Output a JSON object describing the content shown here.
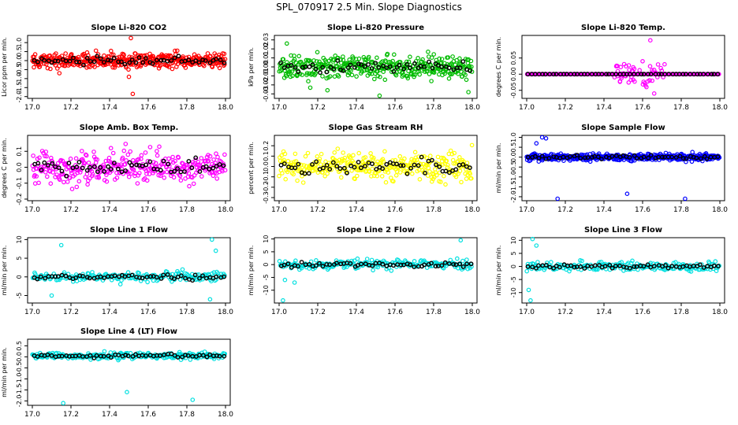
{
  "title": "SPL_070917  2.5 Min. Slope Diagnostics",
  "chart_data": [
    {
      "type": "scatter",
      "title": "Slope Li-820 CO2",
      "ylabel": "Licor ppm per min.",
      "xlim": [
        17.0,
        18.0
      ],
      "ylim": [
        -2.1,
        1.4
      ],
      "xticks": [
        "17.0",
        "17.2",
        "17.4",
        "17.6",
        "17.8",
        "18.0"
      ],
      "yticks": [
        "-2.0",
        "-1.5",
        "-1.0",
        "-0.5",
        "0.0",
        "0.5",
        "1.0"
      ],
      "color": "#ff0000",
      "center": 0.0,
      "spread": 0.35,
      "n": 420,
      "outliers": [
        [
          17.52,
          -1.85
        ],
        [
          17.51,
          1.25
        ],
        [
          17.5,
          -0.9
        ],
        [
          17.14,
          -0.7
        ]
      ]
    },
    {
      "type": "scatter",
      "title": "Slope Li-820 Pressure",
      "ylabel": "kPa per min.",
      "xlim": [
        17.0,
        18.0
      ],
      "ylim": [
        -0.035,
        0.035
      ],
      "xticks": [
        "17.0",
        "17.2",
        "17.4",
        "17.6",
        "17.8",
        "18.0"
      ],
      "yticks": [
        "-0.03",
        "-0.02",
        "-0.01",
        "0.00",
        "0.01",
        "0.02",
        "0.03"
      ],
      "color": "#00bb00",
      "center": 0.0,
      "spread": 0.011,
      "n": 380,
      "outliers": [
        [
          17.04,
          0.026
        ],
        [
          17.52,
          -0.032
        ],
        [
          17.98,
          -0.028
        ],
        [
          17.25,
          -0.026
        ]
      ]
    },
    {
      "type": "scatter",
      "title": "Slope Li-820 Temp.",
      "ylabel": "degrees C per min.",
      "xlim": [
        17.0,
        18.0
      ],
      "ylim": [
        -0.075,
        0.12
      ],
      "xticks": [
        "17.0",
        "17.2",
        "17.4",
        "17.6",
        "17.8",
        "18.0"
      ],
      "yticks": [
        "-0.05",
        "0.00",
        "0.05"
      ],
      "color": "#ff00ff",
      "center": 0.0,
      "spread": 0.0,
      "n": 200,
      "outliers": [
        [
          17.64,
          0.105
        ],
        [
          17.66,
          -0.06
        ],
        [
          17.6,
          0.04
        ],
        [
          17.68,
          0.03
        ],
        [
          17.62,
          -0.04
        ]
      ]
    },
    {
      "type": "scatter",
      "title": "Slope Amb. Box Temp.",
      "ylabel": "degrees C per min.",
      "xlim": [
        17.0,
        18.0
      ],
      "ylim": [
        -0.21,
        0.2
      ],
      "xticks": [
        "17.0",
        "17.2",
        "17.4",
        "17.6",
        "17.8",
        "18.0"
      ],
      "yticks": [
        "-0.2",
        "-0.1",
        "0.0",
        "0.1"
      ],
      "color": "#ff00ff",
      "center": 0.0,
      "spread": 0.08,
      "n": 340,
      "outliers": []
    },
    {
      "type": "scatter",
      "title": "Slope Gas Stream RH",
      "ylabel": "percent per min.",
      "xlim": [
        17.0,
        18.0
      ],
      "ylim": [
        -0.33,
        0.3
      ],
      "xticks": [
        "17.0",
        "17.2",
        "17.4",
        "17.6",
        "17.8",
        "18.0"
      ],
      "yticks": [
        "-0.3",
        "-0.2",
        "-0.1",
        "0.0",
        "0.1",
        "0.2"
      ],
      "color": "#ffff00",
      "center": 0.0,
      "spread": 0.12,
      "n": 330,
      "outliers": []
    },
    {
      "type": "scatter",
      "title": "Slope Sample Flow",
      "ylabel": "ml/min per min.",
      "xlim": [
        17.0,
        18.0
      ],
      "ylim": [
        -2.2,
        1.1
      ],
      "xticks": [
        "17.0",
        "17.2",
        "17.4",
        "17.6",
        "17.8",
        "18.0"
      ],
      "yticks": [
        "-2.0",
        "-1.5",
        "-1.0",
        "-0.5",
        "0.0",
        "0.5",
        "1.0"
      ],
      "color": "#0000ff",
      "center": 0.0,
      "spread": 0.15,
      "n": 420,
      "outliers": [
        [
          17.16,
          -2.1
        ],
        [
          17.82,
          -2.1
        ],
        [
          17.52,
          -1.85
        ],
        [
          17.08,
          1.0
        ],
        [
          17.1,
          0.95
        ],
        [
          17.05,
          0.7
        ]
      ]
    },
    {
      "type": "scatter",
      "title": "Slope Line 1 Flow",
      "ylabel": "ml/min per min.",
      "xlim": [
        17.0,
        18.0
      ],
      "ylim": [
        -7,
        10.5
      ],
      "xticks": [
        "17.0",
        "17.2",
        "17.4",
        "17.6",
        "17.8",
        "18.0"
      ],
      "yticks": [
        "-5",
        "0",
        "5",
        "10"
      ],
      "color": "#00e0e0",
      "center": 0.0,
      "spread": 1.0,
      "n": 200,
      "outliers": [
        [
          17.93,
          10
        ],
        [
          17.15,
          8.5
        ],
        [
          17.92,
          -6
        ],
        [
          17.1,
          -5
        ],
        [
          17.95,
          7
        ]
      ]
    },
    {
      "type": "scatter",
      "title": "Slope Line 2 Flow",
      "ylabel": "ml/min per min.",
      "xlim": [
        17.0,
        18.0
      ],
      "ylim": [
        -15,
        10.5
      ],
      "xticks": [
        "17.0",
        "17.2",
        "17.4",
        "17.6",
        "17.8",
        "18.0"
      ],
      "yticks": [
        "-10",
        "-5",
        "0",
        "5",
        "10"
      ],
      "color": "#00e0e0",
      "center": 0.0,
      "spread": 1.5,
      "n": 200,
      "outliers": [
        [
          17.02,
          -14
        ],
        [
          17.94,
          9.5
        ],
        [
          17.03,
          -6
        ],
        [
          17.08,
          -7
        ]
      ]
    },
    {
      "type": "scatter",
      "title": "Slope Line 3 Flow",
      "ylabel": "ml/min per min.",
      "xlim": [
        17.0,
        18.0
      ],
      "ylim": [
        -14,
        11
      ],
      "xticks": [
        "17.0",
        "17.2",
        "17.4",
        "17.6",
        "17.8",
        "18.0"
      ],
      "yticks": [
        "-10",
        "-5",
        "0",
        "5",
        "10"
      ],
      "color": "#00e0e0",
      "center": 0.0,
      "spread": 1.5,
      "n": 200,
      "outliers": [
        [
          17.02,
          -13
        ],
        [
          17.01,
          -9
        ],
        [
          17.03,
          10.5
        ],
        [
          17.05,
          8
        ]
      ]
    },
    {
      "type": "scatter",
      "title": "Slope Line 4 (LT) Flow",
      "ylabel": "ml/min per min.",
      "xlim": [
        17.0,
        18.0
      ],
      "ylim": [
        -2.2,
        0.8
      ],
      "xticks": [
        "17.0",
        "17.2",
        "17.4",
        "17.6",
        "17.8",
        "18.0"
      ],
      "yticks": [
        "-2.0",
        "-1.5",
        "-1.0",
        "-0.5",
        "0.0",
        "0.5"
      ],
      "color": "#00e0e0",
      "center": 0.05,
      "spread": 0.12,
      "n": 250,
      "outliers": [
        [
          17.16,
          -2.1
        ],
        [
          17.83,
          -1.95
        ],
        [
          17.49,
          -1.6
        ]
      ]
    }
  ]
}
